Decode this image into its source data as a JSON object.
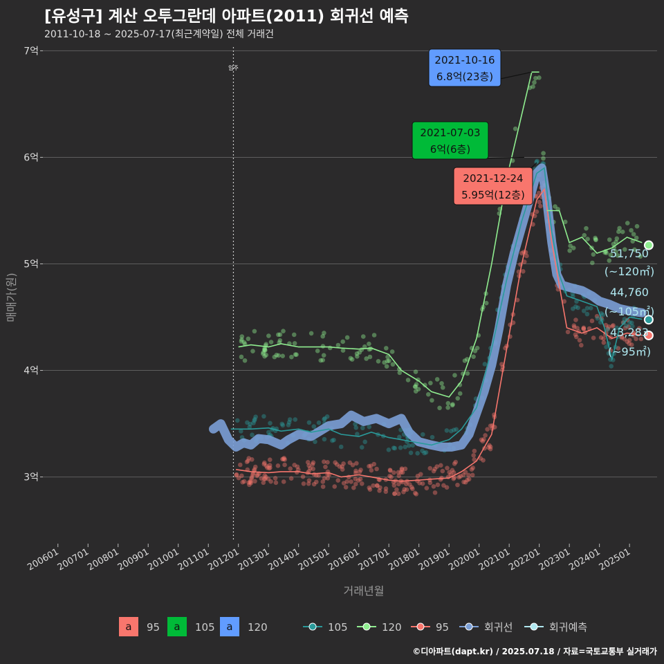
{
  "title": "[유성구] 계산 오투그란데 아파트(2011) 회귀선 예측",
  "subtitle": "2011-10-18 ~ 2025-07-17(최근계약일) 전체 거래건",
  "caption": "©디아파트(dapt.kr) / 2025.07.18 / 자료=국토교통부 실거래가",
  "colors": {
    "background": "#2b2a2b",
    "grid": "#5e5e5e",
    "s95": "#f8766d",
    "s105": "#00ba38",
    "s105_line": "#2a9a9a",
    "s120": "#619cff",
    "s120_line": "#90ee90",
    "regression": "#7b9fd6",
    "forecast": "#b0e8f0"
  },
  "chart_data": {
    "type": "scatter",
    "xlabel": "거래년월",
    "ylabel": "매매가(원)",
    "x_ticks": [
      "200601",
      "200701",
      "200801",
      "200901",
      "201001",
      "201101",
      "201201",
      "201301",
      "201401",
      "201501",
      "201601",
      "201701",
      "201801",
      "201901",
      "202001",
      "202101",
      "202201",
      "202301",
      "202401",
      "202501"
    ],
    "y_ticks": [
      {
        "value": 3,
        "label": "3억"
      },
      {
        "value": 4,
        "label": "4억"
      },
      {
        "value": 5,
        "label": "5억"
      },
      {
        "value": 6,
        "label": "6억"
      },
      {
        "value": 7,
        "label": "7억"
      }
    ],
    "ylim": [
      2.4,
      7.1
    ],
    "xlim": [
      "2005-07",
      "2025-12"
    ],
    "unit": "억",
    "vline": {
      "date": "2011-11",
      "label": "입주"
    },
    "series": [
      {
        "name": "105",
        "line": [
          [
            "2011-10",
            3.45
          ],
          [
            "2012-06",
            3.45
          ],
          [
            "2013-01",
            3.46
          ],
          [
            "2013-06",
            3.43
          ],
          [
            "2014-01",
            3.45
          ],
          [
            "2014-06",
            3.42
          ],
          [
            "2015-01",
            3.45
          ],
          [
            "2015-06",
            3.4
          ],
          [
            "2016-01",
            3.38
          ],
          [
            "2016-06",
            3.42
          ],
          [
            "2017-01",
            3.37
          ],
          [
            "2017-06",
            3.35
          ],
          [
            "2018-01",
            3.32
          ],
          [
            "2018-06",
            3.3
          ],
          [
            "2019-01",
            3.35
          ],
          [
            "2019-06",
            3.45
          ],
          [
            "2019-12",
            3.65
          ],
          [
            "2020-06",
            4.2
          ],
          [
            "2020-12",
            4.85
          ],
          [
            "2021-06",
            5.4
          ],
          [
            "2021-12",
            5.85
          ],
          [
            "2022-03",
            5.9
          ],
          [
            "2022-06",
            5.3
          ],
          [
            "2022-09",
            4.9
          ],
          [
            "2022-12",
            4.7
          ],
          [
            "2023-06",
            4.65
          ],
          [
            "2023-12",
            4.6
          ],
          [
            "2024-03",
            4.4
          ],
          [
            "2024-06",
            4.1
          ],
          [
            "2024-09",
            4.4
          ],
          [
            "2025-01",
            4.5
          ],
          [
            "2025-06",
            4.48
          ]
        ]
      },
      {
        "name": "120",
        "line": [
          [
            "2012-01",
            4.22
          ],
          [
            "2012-06",
            4.24
          ],
          [
            "2013-01",
            4.22
          ],
          [
            "2013-06",
            4.25
          ],
          [
            "2014-01",
            4.22
          ],
          [
            "2014-06",
            4.22
          ],
          [
            "2015-01",
            4.22
          ],
          [
            "2015-06",
            4.21
          ],
          [
            "2016-01",
            4.2
          ],
          [
            "2016-06",
            4.21
          ],
          [
            "2017-01",
            4.15
          ],
          [
            "2017-06",
            4.0
          ],
          [
            "2018-01",
            3.9
          ],
          [
            "2018-06",
            3.8
          ],
          [
            "2019-01",
            3.75
          ],
          [
            "2019-06",
            3.9
          ],
          [
            "2019-12",
            4.3
          ],
          [
            "2020-06",
            5.0
          ],
          [
            "2020-12",
            5.8
          ],
          [
            "2021-06",
            6.4
          ],
          [
            "2021-10",
            6.8
          ],
          [
            "2022-01",
            6.8
          ]
        ],
        "line2": [
          [
            "2022-04",
            5.5
          ],
          [
            "2022-09",
            5.5
          ],
          [
            "2023-01",
            5.2
          ],
          [
            "2023-06",
            5.25
          ],
          [
            "2023-12",
            5.1
          ],
          [
            "2024-06",
            5.15
          ],
          [
            "2024-12",
            5.25
          ],
          [
            "2025-06",
            5.2
          ]
        ]
      },
      {
        "name": "95",
        "line": [
          [
            "2011-12",
            3.07
          ],
          [
            "2012-06",
            3.05
          ],
          [
            "2013-01",
            3.04
          ],
          [
            "2013-06",
            3.05
          ],
          [
            "2014-01",
            3.05
          ],
          [
            "2014-06",
            3.03
          ],
          [
            "2015-01",
            3.04
          ],
          [
            "2015-06",
            3.0
          ],
          [
            "2016-01",
            3.02
          ],
          [
            "2016-06",
            3.0
          ],
          [
            "2017-01",
            2.97
          ],
          [
            "2017-06",
            2.96
          ],
          [
            "2018-01",
            2.97
          ],
          [
            "2018-06",
            2.98
          ],
          [
            "2019-01",
            2.99
          ],
          [
            "2019-06",
            3.05
          ],
          [
            "2019-12",
            3.15
          ],
          [
            "2020-06",
            3.4
          ],
          [
            "2020-12",
            4.2
          ],
          [
            "2021-06",
            5.0
          ],
          [
            "2021-12",
            5.6
          ],
          [
            "2022-03",
            5.7
          ],
          [
            "2022-06",
            5.2
          ],
          [
            "2022-09",
            4.8
          ],
          [
            "2022-12",
            4.4
          ],
          [
            "2023-06",
            4.35
          ],
          [
            "2023-12",
            4.4
          ],
          [
            "2024-06",
            4.3
          ],
          [
            "2024-12",
            4.35
          ],
          [
            "2025-06",
            4.33
          ]
        ]
      },
      {
        "name": "회귀선",
        "line": [
          [
            "2011-03",
            3.45
          ],
          [
            "2011-06",
            3.5
          ],
          [
            "2011-09",
            3.35
          ],
          [
            "2011-12",
            3.28
          ],
          [
            "2012-03",
            3.32
          ],
          [
            "2012-06",
            3.3
          ],
          [
            "2012-09",
            3.36
          ],
          [
            "2013-01",
            3.35
          ],
          [
            "2013-06",
            3.3
          ],
          [
            "2013-09",
            3.35
          ],
          [
            "2014-01",
            3.4
          ],
          [
            "2014-06",
            3.38
          ],
          [
            "2015-01",
            3.48
          ],
          [
            "2015-06",
            3.5
          ],
          [
            "2015-10",
            3.58
          ],
          [
            "2016-03",
            3.52
          ],
          [
            "2016-08",
            3.55
          ],
          [
            "2017-01",
            3.5
          ],
          [
            "2017-06",
            3.55
          ],
          [
            "2017-09",
            3.42
          ],
          [
            "2018-01",
            3.33
          ],
          [
            "2018-06",
            3.3
          ],
          [
            "2018-10",
            3.28
          ],
          [
            "2019-02",
            3.28
          ],
          [
            "2019-06",
            3.3
          ],
          [
            "2019-09",
            3.4
          ],
          [
            "2019-12",
            3.6
          ],
          [
            "2020-03",
            3.8
          ],
          [
            "2020-06",
            4.05
          ],
          [
            "2020-09",
            4.4
          ],
          [
            "2020-12",
            4.8
          ],
          [
            "2021-03",
            5.1
          ],
          [
            "2021-06",
            5.35
          ],
          [
            "2021-09",
            5.6
          ],
          [
            "2021-12",
            5.85
          ],
          [
            "2022-02",
            5.9
          ],
          [
            "2022-04",
            5.6
          ],
          [
            "2022-06",
            5.2
          ],
          [
            "2022-08",
            4.9
          ],
          [
            "2022-10",
            4.8
          ],
          [
            "2023-01",
            4.78
          ],
          [
            "2023-06",
            4.75
          ],
          [
            "2023-10",
            4.7
          ],
          [
            "2024-01",
            4.65
          ],
          [
            "2024-05",
            4.62
          ],
          [
            "2024-09",
            4.58
          ],
          [
            "2025-01",
            4.56
          ],
          [
            "2025-06",
            4.54
          ]
        ]
      }
    ],
    "forecasts": [
      {
        "name": "120",
        "date": "2025-07",
        "value": 5.175,
        "label": "51,750",
        "area": "(~120㎡)"
      },
      {
        "name": "105",
        "date": "2025-07",
        "value": 4.476,
        "label": "44,760",
        "area": "(~105㎡)"
      },
      {
        "name": "95",
        "date": "2025-07",
        "value": 4.3283,
        "label": "43,283",
        "area": "(~95㎡)"
      }
    ],
    "annotations": [
      {
        "series": "120",
        "date_label": "2021-10-16",
        "price_label": "6.8억(23층)",
        "x": "2021-10",
        "y": 6.8
      },
      {
        "series": "105",
        "date_label": "2021-07-03",
        "price_label": "6억(6층)",
        "x": "2021-07",
        "y": 6.0
      },
      {
        "series": "95",
        "date_label": "2021-12-24",
        "price_label": "5.95억(12층)",
        "x": "2021-12",
        "y": 5.95
      }
    ],
    "legend": {
      "placement": "bottom",
      "label_items": [
        {
          "key": "a",
          "name": "95"
        },
        {
          "key": "a",
          "name": "105"
        },
        {
          "key": "a",
          "name": "120"
        }
      ],
      "line_items": [
        {
          "name": "105"
        },
        {
          "name": "120"
        },
        {
          "name": "95"
        },
        {
          "name": "회귀선"
        },
        {
          "name": "회귀예측"
        }
      ]
    }
  }
}
